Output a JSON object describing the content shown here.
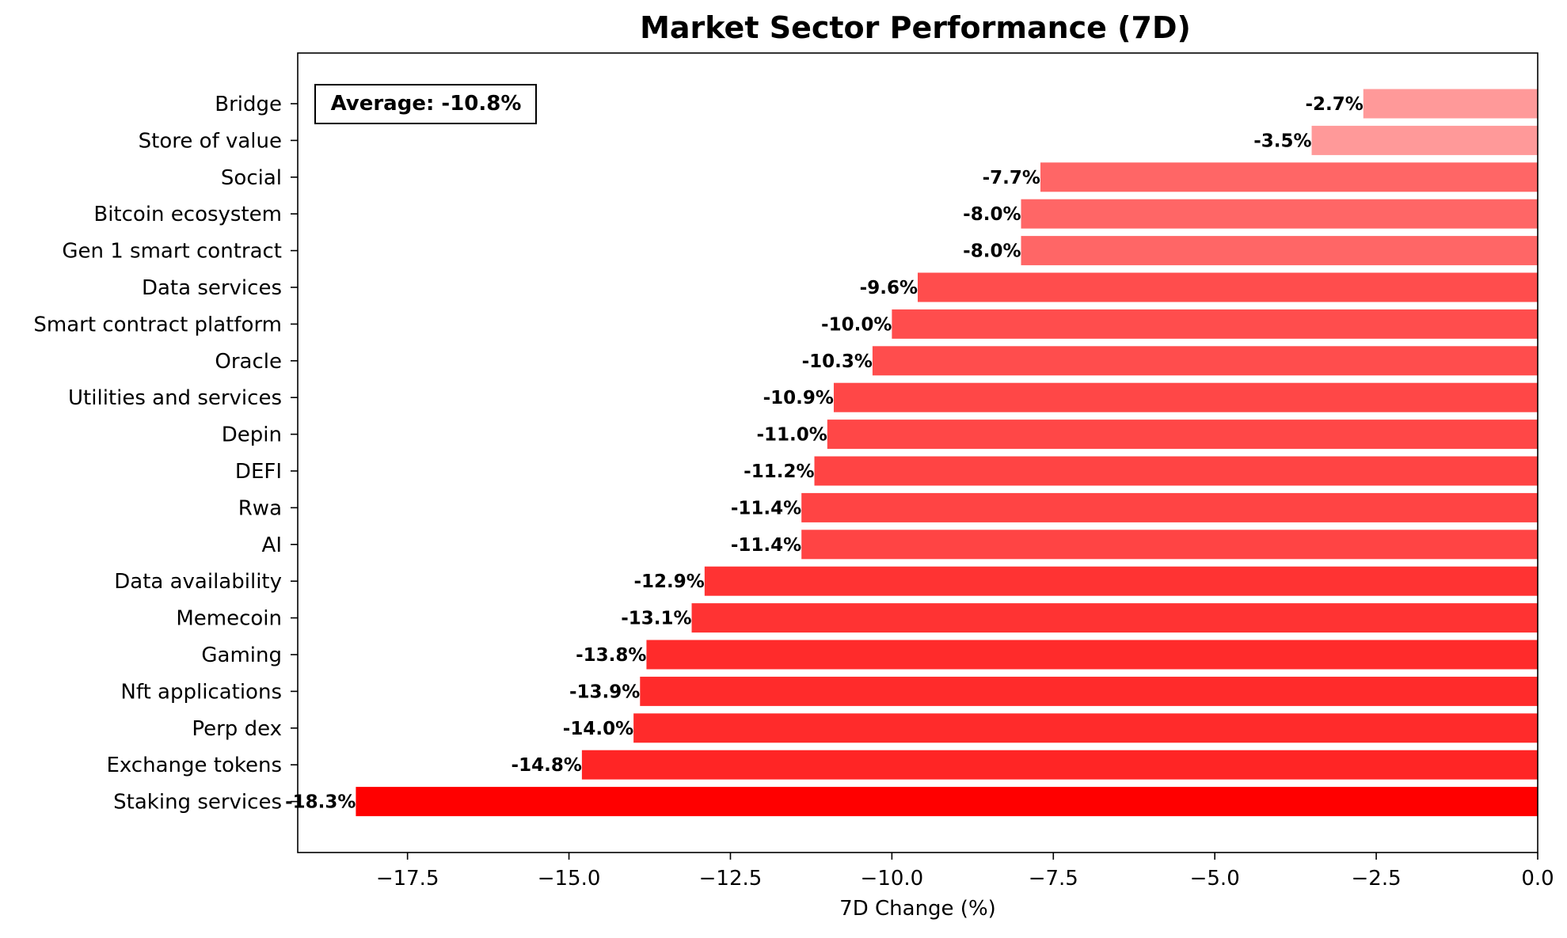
{
  "chart_data": {
    "type": "bar",
    "orientation": "horizontal",
    "title": "Market Sector Performance (7D)",
    "xlabel": "7D Change (%)",
    "ylabel": "",
    "xlim": [
      -19.2,
      0
    ],
    "xticks": [
      -17.5,
      -15.0,
      -12.5,
      -10.0,
      -7.5,
      -5.0,
      -2.5,
      0.0
    ],
    "xtick_labels": [
      "−17.5",
      "−15.0",
      "−12.5",
      "−10.0",
      "−7.5",
      "−5.0",
      "−2.5",
      "0.0"
    ],
    "categories": [
      "Bridge",
      "Store of value",
      "Social",
      "Bitcoin ecosystem",
      "Gen 1 smart contract",
      "Data services",
      "Smart contract platform",
      "Oracle",
      "Utilities and services",
      "Depin",
      "DEFI",
      "Rwa",
      "AI",
      "Data availability",
      "Memecoin",
      "Gaming",
      "Nft applications",
      "Perp dex",
      "Exchange tokens",
      "Staking services"
    ],
    "values": [
      -2.7,
      -3.5,
      -7.7,
      -8.0,
      -8.0,
      -9.6,
      -10.0,
      -10.3,
      -10.9,
      -11.0,
      -11.2,
      -11.4,
      -11.4,
      -12.9,
      -13.1,
      -13.8,
      -13.9,
      -14.0,
      -14.8,
      -18.3
    ],
    "value_labels": [
      "-2.7%",
      "-3.5%",
      "-7.7%",
      "-8.0%",
      "-8.0%",
      "-9.6%",
      "-10.0%",
      "-10.3%",
      "-10.9%",
      "-11.0%",
      "-11.2%",
      "-11.4%",
      "-11.4%",
      "-12.9%",
      "-13.1%",
      "-13.8%",
      "-13.9%",
      "-14.0%",
      "-14.8%",
      "-18.3%"
    ],
    "colors": [
      "#ff9999",
      "#ff9999",
      "#ff6666",
      "#ff6666",
      "#ff6666",
      "#ff4d4d",
      "#ff4d4d",
      "#ff4d4d",
      "#ff4747",
      "#ff4747",
      "#ff4444",
      "#ff4444",
      "#ff4444",
      "#ff3333",
      "#ff3333",
      "#ff2b2b",
      "#ff2b2b",
      "#ff2b2b",
      "#ff2525",
      "#ff0000"
    ],
    "grid": false,
    "legend": "none",
    "annotation": {
      "text": "Average: -10.8%",
      "position": "top-left"
    }
  }
}
